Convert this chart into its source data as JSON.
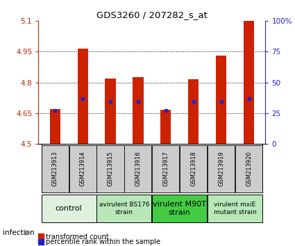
{
  "title": "GDS3260 / 207282_s_at",
  "samples": [
    "GSM213913",
    "GSM213914",
    "GSM213915",
    "GSM213916",
    "GSM213917",
    "GSM213918",
    "GSM213919",
    "GSM213920"
  ],
  "red_values": [
    4.67,
    4.965,
    4.82,
    4.825,
    4.665,
    4.815,
    4.93,
    5.1
  ],
  "blue_values": [
    27,
    37,
    34.5,
    34.5,
    27,
    34.5,
    34.5,
    37
  ],
  "ylim_left": [
    4.5,
    5.1
  ],
  "ylim_right": [
    0,
    100
  ],
  "yticks_left": [
    4.5,
    4.65,
    4.8,
    4.95,
    5.1
  ],
  "ytick_labels_left": [
    "4.5",
    "4.65",
    "4.8",
    "4.95",
    "5.1"
  ],
  "yticks_right": [
    0,
    25,
    50,
    75,
    100
  ],
  "ytick_labels_right": [
    "0",
    "25",
    "50",
    "75",
    "100%"
  ],
  "groups": [
    {
      "label": "control",
      "start": 0,
      "end": 2,
      "color": "#dff0df",
      "fontsize": 8
    },
    {
      "label": "avirulent BS176\nstrain",
      "start": 2,
      "end": 4,
      "color": "#b8e8b8",
      "fontsize": 6.5
    },
    {
      "label": "virulent M90T\nstrain",
      "start": 4,
      "end": 6,
      "color": "#44cc44",
      "fontsize": 8
    },
    {
      "label": "virulent mxiE\nmutant strain",
      "start": 6,
      "end": 8,
      "color": "#b8e8b8",
      "fontsize": 6.5
    }
  ],
  "bar_color": "#cc2200",
  "blue_marker_color": "#2222cc",
  "left_axis_color": "#cc2200",
  "right_axis_color": "#2222cc",
  "grid_color": "#000000",
  "sample_box_color": "#cccccc",
  "legend_red_label": "transformed count",
  "legend_blue_label": "percentile rank within the sample",
  "infection_label": "infection"
}
